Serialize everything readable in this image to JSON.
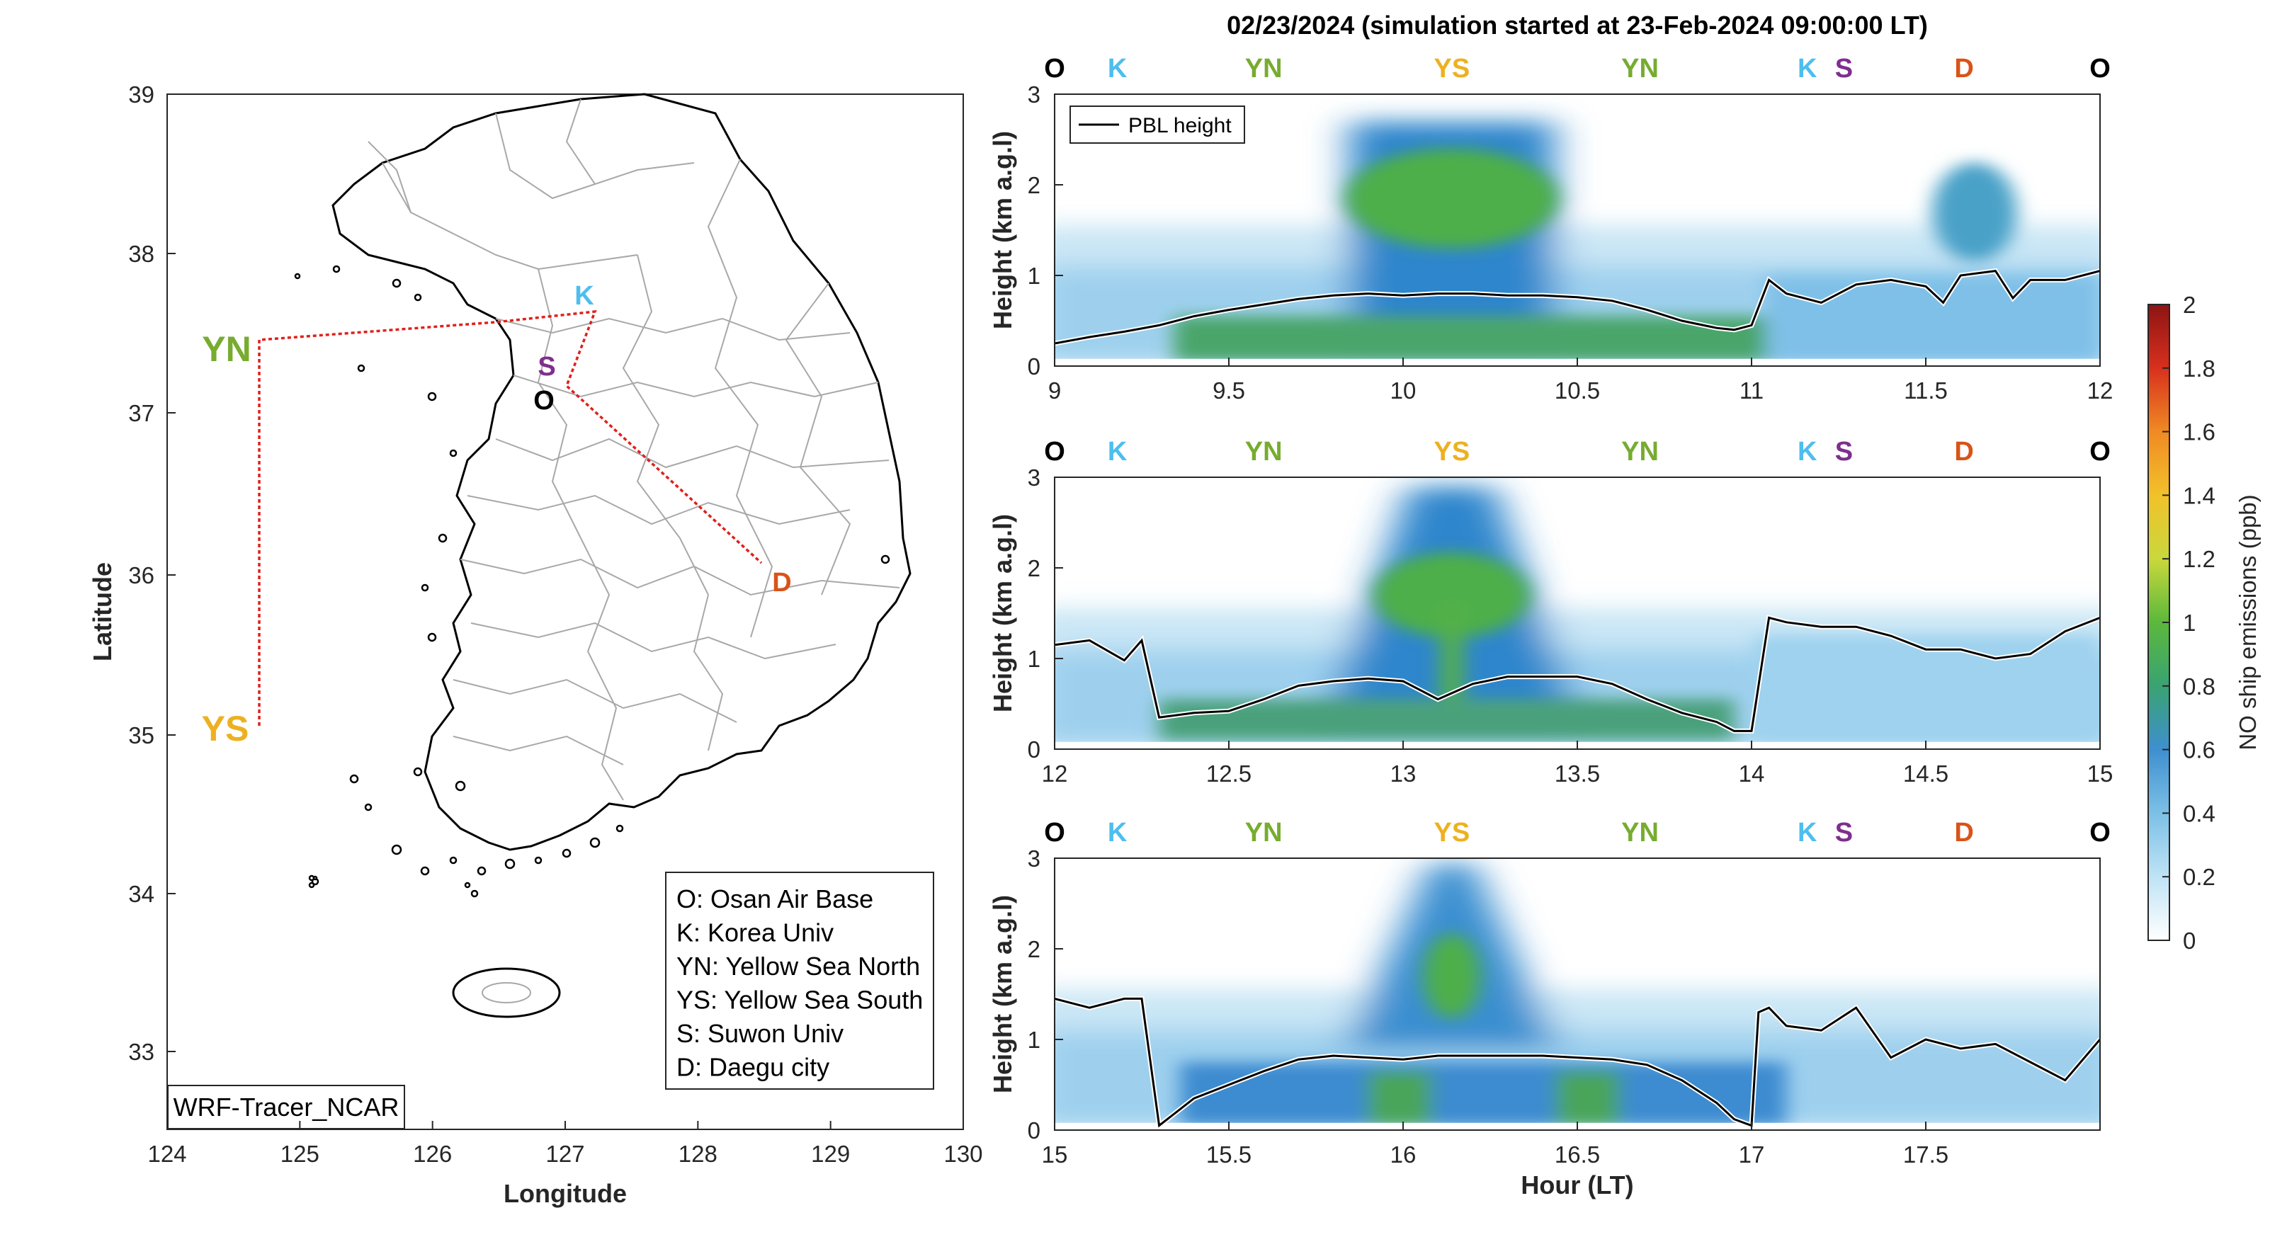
{
  "figure_title": "02/23/2024 (simulation started at 23-Feb-2024 09:00:00 LT)",
  "colors": {
    "O": "#000000",
    "K": "#4DBEEE",
    "YN": "#77AC30",
    "YS": "#EDB120",
    "S": "#7E2F8E",
    "D": "#D95319",
    "route": "#E0201B"
  },
  "map": {
    "xlabel": "Longitude",
    "ylabel": "Latitude",
    "xticks": [
      "124",
      "125",
      "126",
      "127",
      "128",
      "129",
      "130"
    ],
    "yticks": [
      "33",
      "34",
      "35",
      "36",
      "37",
      "38",
      "39"
    ],
    "site_labels": {
      "O": "O",
      "K": "K",
      "YN": "YN",
      "YS": "YS",
      "S": "S",
      "D": "D"
    },
    "legend": [
      "O: Osan Air Base",
      "K: Korea Univ",
      "YN: Yellow Sea North",
      "YS: Yellow Sea South",
      "S: Suwon Univ",
      "D: Daegu city"
    ],
    "model_label": "WRF-Tracer_NCAR"
  },
  "chart_data": [
    {
      "type": "heatmap",
      "title": "02/23/2024 (simulation started at 23-Feb-2024 09:00:00 LT)",
      "xlabel": "",
      "ylabel": "Height (km a.g.l)",
      "xlim": [
        9,
        12
      ],
      "ylim": [
        0,
        3
      ],
      "xticks": [
        "9",
        "9.5",
        "10",
        "10.5",
        "11",
        "11.5",
        "12"
      ],
      "yticks": [
        "0",
        "1",
        "2",
        "3"
      ],
      "site_sequence": [
        "O",
        "K",
        "YN",
        "YS",
        "YN",
        "K",
        "S",
        "D",
        "O"
      ],
      "legend": [
        "PBL height"
      ],
      "legend_position": "top-left",
      "pbl_height": {
        "name": "PBL height",
        "x": [
          9.0,
          9.1,
          9.2,
          9.3,
          9.4,
          9.5,
          9.6,
          9.7,
          9.8,
          9.9,
          10.0,
          10.1,
          10.2,
          10.3,
          10.4,
          10.5,
          10.6,
          10.7,
          10.8,
          10.9,
          10.95,
          11.0,
          11.05,
          11.1,
          11.2,
          11.3,
          11.4,
          11.5,
          11.55,
          11.6,
          11.7,
          11.75,
          11.8,
          11.9,
          12.0
        ],
        "y": [
          0.25,
          0.32,
          0.38,
          0.45,
          0.55,
          0.62,
          0.68,
          0.74,
          0.78,
          0.8,
          0.78,
          0.8,
          0.8,
          0.78,
          0.78,
          0.76,
          0.72,
          0.62,
          0.5,
          0.42,
          0.4,
          0.45,
          0.95,
          0.8,
          0.7,
          0.9,
          0.95,
          0.88,
          0.7,
          1.0,
          1.05,
          0.75,
          0.95,
          0.95,
          1.05
        ]
      }
    },
    {
      "type": "heatmap",
      "xlabel": "",
      "ylabel": "Height (km a.g.l)",
      "xlim": [
        12,
        15
      ],
      "ylim": [
        0,
        3
      ],
      "xticks": [
        "12",
        "12.5",
        "13",
        "13.5",
        "14",
        "14.5",
        "15"
      ],
      "yticks": [
        "0",
        "1",
        "2",
        "3"
      ],
      "site_sequence": [
        "O",
        "K",
        "YN",
        "YS",
        "YN",
        "K",
        "S",
        "D",
        "O"
      ],
      "pbl_height": {
        "name": "PBL height",
        "x": [
          12.0,
          12.1,
          12.2,
          12.25,
          12.3,
          12.4,
          12.5,
          12.6,
          12.7,
          12.8,
          12.9,
          13.0,
          13.1,
          13.2,
          13.3,
          13.4,
          13.5,
          13.6,
          13.7,
          13.8,
          13.9,
          13.95,
          14.0,
          14.05,
          14.1,
          14.2,
          14.3,
          14.4,
          14.5,
          14.6,
          14.7,
          14.8,
          14.9,
          15.0
        ],
        "y": [
          1.15,
          1.2,
          0.98,
          1.2,
          0.35,
          0.4,
          0.42,
          0.55,
          0.7,
          0.75,
          0.78,
          0.75,
          0.55,
          0.72,
          0.8,
          0.8,
          0.8,
          0.72,
          0.55,
          0.4,
          0.3,
          0.2,
          0.2,
          1.45,
          1.4,
          1.35,
          1.35,
          1.25,
          1.1,
          1.1,
          1.0,
          1.05,
          1.3,
          1.45
        ]
      }
    },
    {
      "type": "heatmap",
      "xlabel": "Hour (LT)",
      "ylabel": "Height (km a.g.l)",
      "xlim": [
        15,
        18
      ],
      "ylim": [
        0,
        3
      ],
      "xticks": [
        "15",
        "15.5",
        "16",
        "16.5",
        "17",
        "17.5"
      ],
      "yticks": [
        "0",
        "1",
        "2",
        "3"
      ],
      "site_sequence": [
        "O",
        "K",
        "YN",
        "YS",
        "YN",
        "K",
        "S",
        "D",
        "O"
      ],
      "pbl_height": {
        "name": "PBL height",
        "x": [
          15.0,
          15.1,
          15.2,
          15.25,
          15.3,
          15.4,
          15.5,
          15.6,
          15.7,
          15.8,
          15.9,
          16.0,
          16.1,
          16.2,
          16.3,
          16.4,
          16.5,
          16.6,
          16.7,
          16.8,
          16.9,
          16.95,
          17.0,
          17.02,
          17.05,
          17.1,
          17.2,
          17.3,
          17.4,
          17.5,
          17.6,
          17.7,
          17.8,
          17.9,
          18.0
        ],
        "y": [
          1.45,
          1.35,
          1.45,
          1.45,
          0.05,
          0.35,
          0.5,
          0.65,
          0.78,
          0.82,
          0.8,
          0.78,
          0.82,
          0.82,
          0.82,
          0.82,
          0.8,
          0.78,
          0.72,
          0.55,
          0.3,
          0.12,
          0.05,
          1.3,
          1.35,
          1.15,
          1.1,
          1.35,
          0.8,
          1.0,
          0.9,
          0.95,
          0.75,
          0.55,
          1.0
        ]
      }
    }
  ],
  "colorbar": {
    "label": "NO ship emissions (ppb)",
    "ticks": [
      "0",
      "0.2",
      "0.4",
      "0.6",
      "0.8",
      "1",
      "1.2",
      "1.4",
      "1.6",
      "1.8",
      "2"
    ],
    "range": [
      0,
      2
    ]
  }
}
